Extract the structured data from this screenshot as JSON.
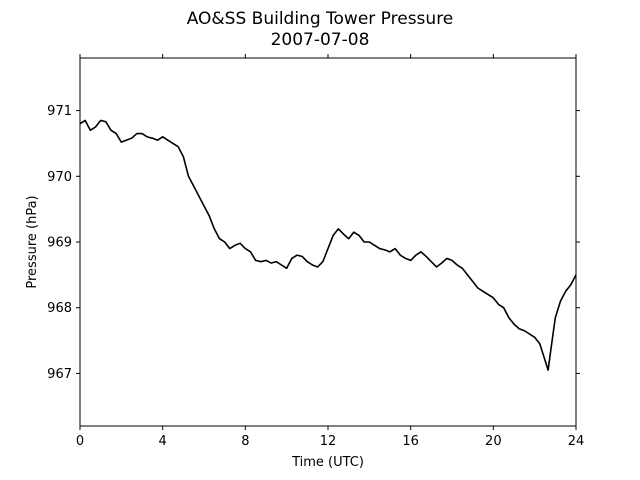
{
  "chart_data": {
    "type": "line",
    "title": "AO&SS Building Tower Pressure",
    "subtitle": "2007-07-08",
    "xlabel": "Time (UTC)",
    "ylabel": "Pressure (hPa)",
    "xlim": [
      0,
      24
    ],
    "ylim": [
      966.2,
      971.8
    ],
    "xticks": [
      0,
      4,
      8,
      12,
      16,
      20,
      24
    ],
    "xtick_labels": [
      "0",
      "4",
      "8",
      "12",
      "16",
      "20",
      "24"
    ],
    "yticks": [
      967,
      968,
      969,
      970,
      971
    ],
    "ytick_labels": [
      "967",
      "968",
      "969",
      "970",
      "971"
    ],
    "grid": false,
    "line_color": "#000000",
    "series": [
      {
        "x": [
          0,
          0.25,
          0.5,
          0.75,
          1.0,
          1.25,
          1.5,
          1.75,
          2.0,
          2.25,
          2.5,
          2.75,
          3.0,
          3.25,
          3.5,
          3.75,
          4.0,
          4.25,
          4.5,
          4.75,
          5.0,
          5.25,
          5.5,
          5.75,
          6.0,
          6.25,
          6.5,
          6.75,
          7.0,
          7.25,
          7.5,
          7.75,
          8.0,
          8.25,
          8.5,
          8.75,
          9.0,
          9.25,
          9.5,
          9.75,
          10.0,
          10.25,
          10.5,
          10.75,
          11.0,
          11.25,
          11.5,
          11.75,
          12.0,
          12.25,
          12.5,
          12.75,
          13.0,
          13.25,
          13.5,
          13.75,
          14.0,
          14.25,
          14.5,
          14.75,
          15.0,
          15.25,
          15.5,
          15.75,
          16.0,
          16.25,
          16.5,
          16.75,
          17.0,
          17.25,
          17.5,
          17.75,
          18.0,
          18.25,
          18.5,
          18.75,
          19.0,
          19.25,
          19.5,
          19.75,
          20.0,
          20.25,
          20.5,
          20.75,
          21.0,
          21.25,
          21.5,
          21.75,
          22.0,
          22.25,
          22.5,
          22.65,
          22.8,
          23.0,
          23.25,
          23.5,
          23.75,
          24.0
        ],
        "y": [
          970.8,
          970.85,
          970.7,
          970.75,
          970.85,
          970.83,
          970.7,
          970.65,
          970.52,
          970.55,
          970.58,
          970.65,
          970.65,
          970.6,
          970.58,
          970.55,
          970.6,
          970.55,
          970.5,
          970.45,
          970.3,
          970.0,
          969.85,
          969.7,
          969.55,
          969.4,
          969.2,
          969.05,
          969.0,
          968.9,
          968.95,
          968.98,
          968.9,
          968.85,
          968.72,
          968.7,
          968.72,
          968.68,
          968.7,
          968.65,
          968.6,
          968.75,
          968.8,
          968.78,
          968.7,
          968.65,
          968.62,
          968.7,
          968.9,
          969.1,
          969.2,
          969.12,
          969.05,
          969.15,
          969.1,
          969.0,
          969.0,
          968.95,
          968.9,
          968.88,
          968.85,
          968.9,
          968.8,
          968.75,
          968.72,
          968.8,
          968.85,
          968.78,
          968.7,
          968.62,
          968.68,
          968.75,
          968.72,
          968.65,
          968.6,
          968.5,
          968.4,
          968.3,
          968.25,
          968.2,
          968.15,
          968.05,
          968.0,
          967.85,
          967.75,
          967.68,
          967.65,
          967.6,
          967.55,
          967.45,
          967.2,
          967.05,
          967.4,
          967.85,
          968.1,
          968.25,
          968.35,
          968.5
        ]
      }
    ]
  }
}
